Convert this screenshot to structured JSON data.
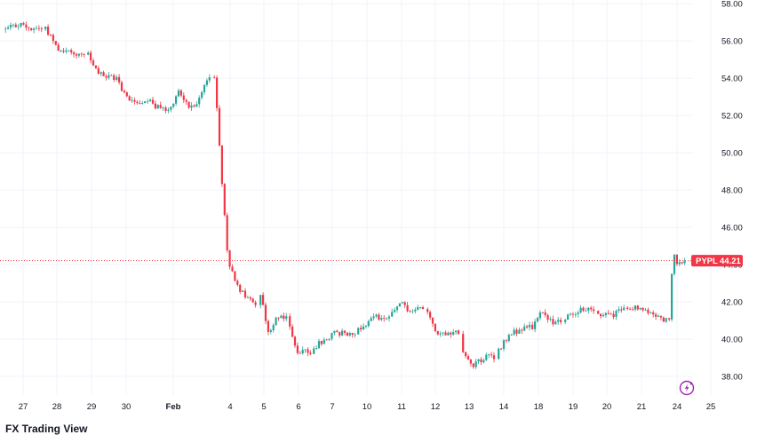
{
  "chart_data": {
    "type": "candlestick",
    "symbol": "PYPL",
    "last_price": 44.21,
    "last_price_label": "44.21",
    "ylim": [
      37,
      58.2
    ],
    "y_ticks": [
      "58.00",
      "56.00",
      "54.00",
      "52.00",
      "50.00",
      "48.00",
      "46.00",
      "44.00",
      "42.00",
      "40.00",
      "38.00"
    ],
    "x_ticks": [
      "27",
      "28",
      "29",
      "30",
      "Feb",
      "4",
      "5",
      "6",
      "7",
      "10",
      "11",
      "12",
      "13",
      "14",
      "18",
      "19",
      "20",
      "21",
      "24",
      "25"
    ],
    "grid": true,
    "colors": {
      "up": "#26a69a",
      "down": "#f23645",
      "last_line": "#f23645",
      "grid": "#f0f3fa"
    },
    "daily_path": [
      {
        "day": "27",
        "prices": [
          56.6,
          56.9,
          56.7,
          56.7
        ]
      },
      {
        "day": "28",
        "prices": [
          56.7,
          55.6,
          55.4,
          55.2
        ]
      },
      {
        "day": "29",
        "prices": [
          55.2,
          54.3,
          54.1,
          54.0
        ]
      },
      {
        "day": "30",
        "prices": [
          54.0,
          53.0,
          52.7,
          52.9
        ]
      },
      {
        "day": "Feb",
        "prices": [
          52.9,
          52.4,
          52.3,
          53.3,
          52.5,
          52.8,
          54.2
        ]
      },
      {
        "day": "4",
        "prices": [
          54.2,
          44.0,
          42.5,
          41.8
        ]
      },
      {
        "day": "5",
        "prices": [
          42.4,
          40.2,
          41.3,
          41.2
        ]
      },
      {
        "day": "6",
        "prices": [
          40.6,
          39.2,
          39.6,
          39.1
        ]
      },
      {
        "day": "7",
        "prices": [
          39.6,
          40.3,
          40.4
        ]
      },
      {
        "day": "10",
        "prices": [
          40.5,
          41.2,
          41.1
        ]
      },
      {
        "day": "11",
        "prices": [
          41.3,
          42.0,
          41.6,
          41.5,
          41.7
        ]
      },
      {
        "day": "12",
        "prices": [
          41.3,
          40.3,
          40.4,
          40.3
        ]
      },
      {
        "day": "13",
        "prices": [
          39.2,
          38.6,
          39.0,
          39.1
        ]
      },
      {
        "day": "14",
        "prices": [
          39.4,
          40.2,
          40.5,
          40.6
        ]
      },
      {
        "day": "18",
        "prices": [
          40.7,
          41.4,
          40.9,
          41.0
        ]
      },
      {
        "day": "19",
        "prices": [
          41.2,
          41.6,
          41.5
        ]
      },
      {
        "day": "20",
        "prices": [
          41.4,
          41.3,
          41.6
        ]
      },
      {
        "day": "21",
        "prices": [
          41.8,
          41.6,
          41.4,
          41.0
        ]
      },
      {
        "day": "24",
        "prices": [
          41.0,
          44.6,
          44.0,
          44.2,
          44.21
        ]
      }
    ]
  },
  "brand": {
    "name": "FX Trading View"
  }
}
